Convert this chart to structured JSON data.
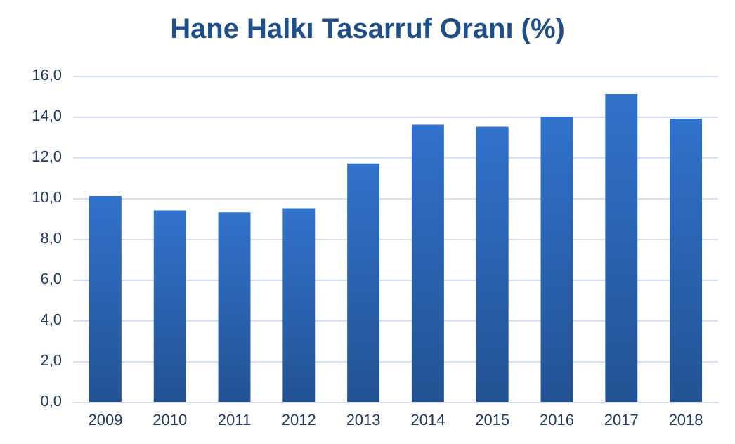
{
  "chart_data": {
    "type": "bar",
    "title": "Hane Halkı Tasarruf Oranı (%)",
    "categories": [
      "2009",
      "2010",
      "2011",
      "2012",
      "2013",
      "2014",
      "2015",
      "2016",
      "2017",
      "2018"
    ],
    "values": [
      10.1,
      9.4,
      9.3,
      9.5,
      11.7,
      13.6,
      13.5,
      14.0,
      15.1,
      13.9
    ],
    "color": "#3172cc",
    "ylim": [
      0,
      16
    ],
    "yticks": [
      {
        "value": 0,
        "label": "0,0"
      },
      {
        "value": 2,
        "label": "2,0"
      },
      {
        "value": 4,
        "label": "4,0"
      },
      {
        "value": 6,
        "label": "6,0"
      },
      {
        "value": 8,
        "label": "8,0"
      },
      {
        "value": 10,
        "label": "10,0"
      },
      {
        "value": 12,
        "label": "12,0"
      },
      {
        "value": 14,
        "label": "14,0"
      },
      {
        "value": 16,
        "label": "16,0"
      }
    ],
    "grid": "y"
  }
}
